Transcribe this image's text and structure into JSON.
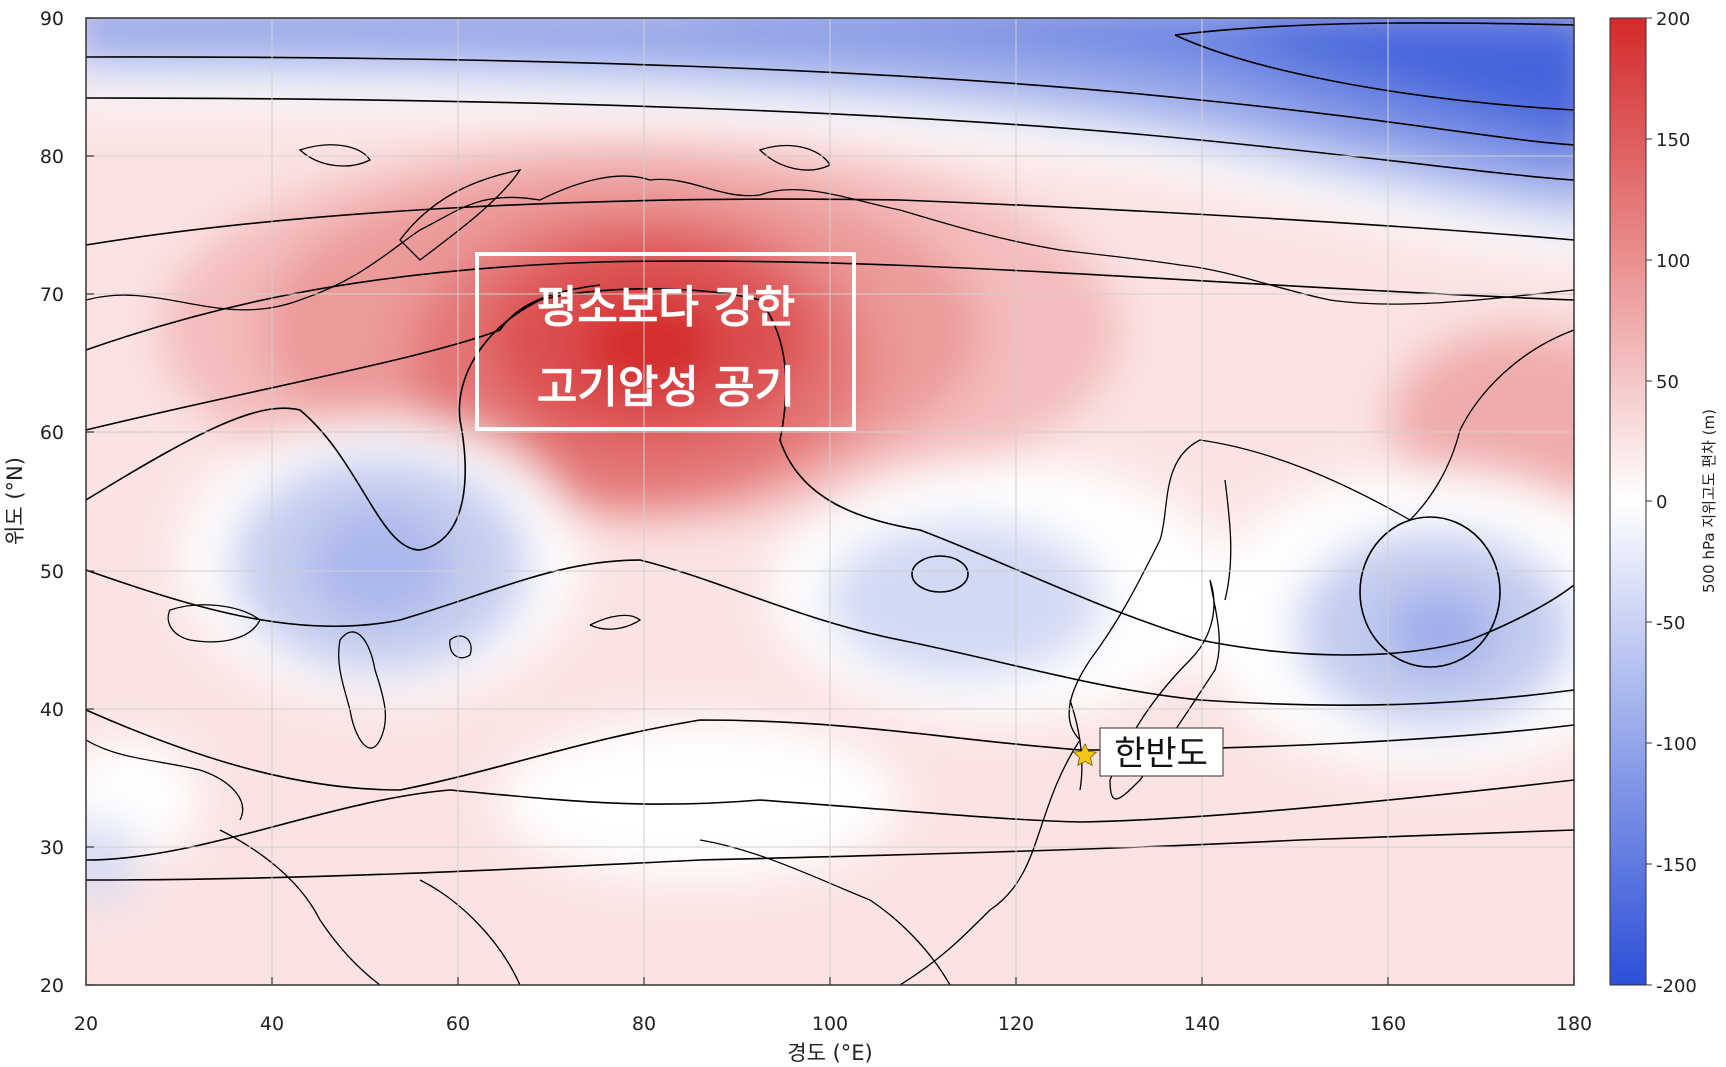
{
  "figure": {
    "xlabel": "경도 (°E)",
    "ylabel": "위도 (°N)",
    "xticks": [
      "20",
      "40",
      "60",
      "80",
      "100",
      "120",
      "140",
      "160",
      "180"
    ],
    "yticks": [
      "20",
      "30",
      "40",
      "50",
      "60",
      "70",
      "80",
      "90"
    ],
    "xlim": [
      20,
      180
    ],
    "ylim": [
      20,
      90
    ],
    "grid": true
  },
  "colorbar": {
    "title": "500 hPa 지위고도 편차 (m)",
    "ticks": [
      "200",
      "150",
      "100",
      "50",
      "0",
      "-50",
      "-100",
      "-150",
      "-200"
    ],
    "range": [
      -200,
      200
    ],
    "color_high": "#d42a2a",
    "color_mid": "#ffffff",
    "color_low": "#2b4fd8"
  },
  "annotation": {
    "line1": "평소보다 강한",
    "line2": "고기압성 공기",
    "border_color": "#ffffff"
  },
  "location": {
    "label": "한반도",
    "marker": "star-icon",
    "marker_color": "#f5c518",
    "lon": 127.5,
    "lat": 36.5
  }
}
